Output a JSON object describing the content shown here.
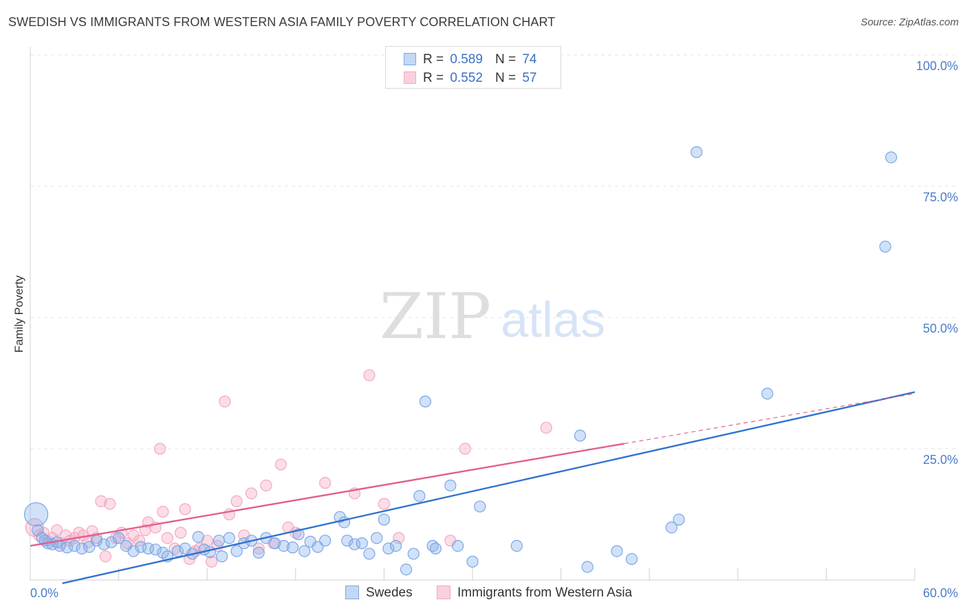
{
  "header": {
    "title": "SWEDISH VS IMMIGRANTS FROM WESTERN ASIA FAMILY POVERTY CORRELATION CHART",
    "source": "Source: ZipAtlas.com"
  },
  "watermark": {
    "zip": "ZIP",
    "atlas": "atlas"
  },
  "legend": {
    "rows": [
      {
        "r_label": "R =",
        "r_value": "0.589",
        "n_label": "N =",
        "n_value": "74"
      },
      {
        "r_label": "R =",
        "r_value": "0.552",
        "n_label": "N =",
        "n_value": "57"
      }
    ]
  },
  "chart_data": {
    "type": "scatter",
    "title": "SWEDISH VS IMMIGRANTS FROM WESTERN ASIA FAMILY POVERTY CORRELATION CHART",
    "xlabel": "",
    "ylabel": "Family Poverty",
    "xlim": [
      0,
      60
    ],
    "ylim": [
      0,
      100
    ],
    "x_tick_labels": [
      "0.0%",
      "60.0%"
    ],
    "y_ticks": [
      25,
      50,
      75,
      100
    ],
    "y_tick_labels": [
      "25.0%",
      "50.0%",
      "75.0%",
      "100.0%"
    ],
    "grid": true,
    "legend_position": "top-center",
    "series": [
      {
        "name": "Swedes",
        "color": "#7aa6e6",
        "trend_color": "#2f73d0",
        "r": 0.589,
        "n": 74,
        "trend": {
          "x0": 0.0,
          "y0": -2.0,
          "x1": 60.0,
          "y1": 35.8
        },
        "points": [
          [
            0.4,
            12.5
          ],
          [
            0.5,
            9.5
          ],
          [
            0.8,
            8.0
          ],
          [
            1.0,
            7.5
          ],
          [
            1.2,
            7.0
          ],
          [
            1.5,
            6.8
          ],
          [
            1.8,
            7.2
          ],
          [
            2.0,
            6.5
          ],
          [
            2.5,
            6.2
          ],
          [
            3.0,
            6.5
          ],
          [
            3.5,
            6.0
          ],
          [
            4.0,
            6.3
          ],
          [
            4.5,
            7.5
          ],
          [
            5.0,
            6.8
          ],
          [
            5.5,
            7.2
          ],
          [
            6.0,
            8.0
          ],
          [
            6.5,
            6.5
          ],
          [
            7.0,
            5.5
          ],
          [
            7.5,
            6.3
          ],
          [
            8.0,
            6.0
          ],
          [
            8.5,
            5.8
          ],
          [
            9.0,
            5.2
          ],
          [
            9.3,
            4.5
          ],
          [
            10.0,
            5.5
          ],
          [
            10.5,
            6.0
          ],
          [
            11.0,
            5.0
          ],
          [
            11.4,
            8.2
          ],
          [
            11.8,
            5.8
          ],
          [
            12.2,
            5.3
          ],
          [
            12.8,
            7.5
          ],
          [
            13.0,
            4.5
          ],
          [
            13.5,
            8.0
          ],
          [
            14.0,
            5.5
          ],
          [
            14.5,
            7.0
          ],
          [
            15.0,
            7.5
          ],
          [
            15.5,
            5.2
          ],
          [
            16.0,
            8.0
          ],
          [
            16.6,
            7.0
          ],
          [
            17.2,
            6.5
          ],
          [
            17.8,
            6.2
          ],
          [
            18.2,
            8.7
          ],
          [
            18.6,
            5.5
          ],
          [
            19.0,
            7.3
          ],
          [
            19.5,
            6.3
          ],
          [
            20.0,
            7.5
          ],
          [
            21.0,
            12.0
          ],
          [
            21.3,
            11.0
          ],
          [
            21.5,
            7.5
          ],
          [
            22.0,
            6.8
          ],
          [
            22.5,
            7.0
          ],
          [
            23.0,
            5.0
          ],
          [
            23.5,
            8.0
          ],
          [
            24.0,
            11.5
          ],
          [
            24.3,
            6.0
          ],
          [
            24.8,
            6.5
          ],
          [
            25.5,
            2.0
          ],
          [
            26.0,
            5.0
          ],
          [
            26.4,
            16.0
          ],
          [
            26.8,
            34.0
          ],
          [
            27.3,
            6.5
          ],
          [
            27.5,
            6.0
          ],
          [
            28.5,
            18.0
          ],
          [
            29.0,
            6.5
          ],
          [
            30.0,
            3.5
          ],
          [
            30.5,
            14.0
          ],
          [
            33.0,
            6.5
          ],
          [
            37.3,
            27.5
          ],
          [
            37.8,
            2.5
          ],
          [
            39.8,
            5.5
          ],
          [
            40.8,
            4.0
          ],
          [
            43.5,
            10.0
          ],
          [
            44.0,
            11.5
          ],
          [
            45.2,
            81.5
          ],
          [
            50.0,
            35.5
          ],
          [
            58.0,
            63.5
          ],
          [
            58.4,
            80.5
          ]
        ]
      },
      {
        "name": "Immigrants from Western Asia",
        "color": "#f3a7bf",
        "trend_color": "#e0608c",
        "r": 0.552,
        "n": 57,
        "trend": {
          "x0": 0.0,
          "y0": 6.5,
          "x1": 60.0,
          "y1": 35.5,
          "solid_until_x": 40.3
        },
        "points": [
          [
            0.3,
            10.0
          ],
          [
            0.6,
            8.5
          ],
          [
            0.9,
            9.0
          ],
          [
            1.2,
            7.5
          ],
          [
            1.5,
            8.0
          ],
          [
            1.8,
            9.5
          ],
          [
            2.1,
            7.0
          ],
          [
            2.4,
            8.5
          ],
          [
            2.7,
            7.5
          ],
          [
            3.0,
            8.0
          ],
          [
            3.3,
            9.0
          ],
          [
            3.6,
            8.5
          ],
          [
            3.9,
            7.2
          ],
          [
            4.2,
            9.3
          ],
          [
            4.5,
            8.0
          ],
          [
            4.8,
            15.0
          ],
          [
            5.1,
            4.5
          ],
          [
            5.4,
            14.5
          ],
          [
            5.8,
            8.0
          ],
          [
            6.2,
            9.0
          ],
          [
            6.6,
            7.0
          ],
          [
            7.0,
            8.5
          ],
          [
            7.4,
            7.5
          ],
          [
            7.8,
            9.5
          ],
          [
            8.0,
            11.0
          ],
          [
            8.5,
            10.0
          ],
          [
            8.8,
            25.0
          ],
          [
            9.0,
            13.0
          ],
          [
            9.3,
            8.0
          ],
          [
            9.8,
            6.0
          ],
          [
            10.2,
            9.0
          ],
          [
            10.5,
            13.5
          ],
          [
            10.8,
            4.0
          ],
          [
            11.2,
            5.5
          ],
          [
            11.5,
            6.0
          ],
          [
            12.0,
            7.5
          ],
          [
            12.3,
            3.5
          ],
          [
            12.7,
            6.5
          ],
          [
            13.2,
            34.0
          ],
          [
            13.5,
            12.5
          ],
          [
            14.0,
            15.0
          ],
          [
            14.5,
            8.5
          ],
          [
            15.0,
            16.5
          ],
          [
            15.5,
            6.0
          ],
          [
            16.0,
            18.0
          ],
          [
            16.5,
            7.0
          ],
          [
            17.0,
            22.0
          ],
          [
            17.5,
            10.0
          ],
          [
            18.0,
            9.0
          ],
          [
            20.0,
            18.5
          ],
          [
            22.0,
            16.5
          ],
          [
            23.0,
            39.0
          ],
          [
            24.0,
            14.5
          ],
          [
            25.0,
            8.0
          ],
          [
            28.5,
            7.5
          ],
          [
            29.5,
            25.0
          ],
          [
            35.0,
            29.0
          ]
        ]
      }
    ]
  }
}
